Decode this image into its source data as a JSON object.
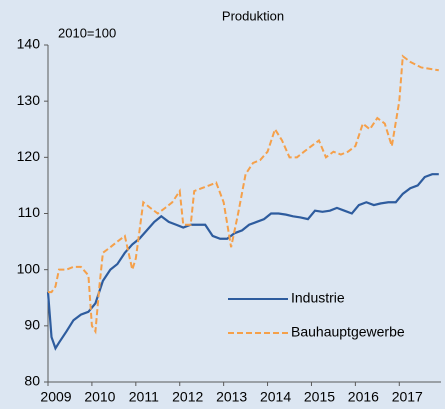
{
  "chart_data": {
    "type": "line",
    "title": "Produktion",
    "annotation": "2010=100",
    "xlim": [
      2009,
      2017.95
    ],
    "xticks": [
      2009,
      2010,
      2011,
      2012,
      2013,
      2014,
      2015,
      2016,
      2017
    ],
    "ylim": [
      80,
      140
    ],
    "yticks": [
      80,
      90,
      100,
      110,
      120,
      130,
      140
    ],
    "grid": false,
    "series": [
      {
        "name": "Industrie",
        "color": "#2e5c9e",
        "dash": false,
        "x": [
          2009.0,
          2009.08,
          2009.17,
          2009.25,
          2009.42,
          2009.58,
          2009.75,
          2009.92,
          2010.08,
          2010.25,
          2010.42,
          2010.58,
          2010.75,
          2010.92,
          2011.08,
          2011.25,
          2011.42,
          2011.58,
          2011.75,
          2011.92,
          2012.08,
          2012.25,
          2012.42,
          2012.58,
          2012.75,
          2012.92,
          2013.08,
          2013.25,
          2013.42,
          2013.58,
          2013.75,
          2013.92,
          2014.08,
          2014.25,
          2014.42,
          2014.58,
          2014.75,
          2014.92,
          2015.08,
          2015.25,
          2015.42,
          2015.58,
          2015.75,
          2015.92,
          2016.08,
          2016.25,
          2016.42,
          2016.58,
          2016.75,
          2016.92,
          2017.08,
          2017.25,
          2017.42,
          2017.58,
          2017.75,
          2017.9
        ],
        "values": [
          96,
          88,
          86,
          87,
          89,
          91,
          92,
          92.5,
          94,
          98,
          100,
          101,
          103,
          104.5,
          105.5,
          107,
          108.5,
          109.5,
          108.5,
          108,
          107.5,
          108,
          108,
          108,
          106,
          105.5,
          105.5,
          106.5,
          107,
          108,
          108.5,
          109,
          110,
          110,
          109.8,
          109.5,
          109.3,
          109,
          110.5,
          110.3,
          110.5,
          111,
          110.5,
          110,
          111.5,
          112,
          111.5,
          111.8,
          112,
          112,
          113.5,
          114.5,
          115,
          116.5,
          117,
          117
        ]
      },
      {
        "name": "Bauhauptgewerbe",
        "color": "#f5a04a",
        "dash": true,
        "x": [
          2009.0,
          2009.08,
          2009.17,
          2009.25,
          2009.42,
          2009.58,
          2009.75,
          2009.92,
          2010.0,
          2010.08,
          2010.17,
          2010.25,
          2010.42,
          2010.58,
          2010.75,
          2010.92,
          2011.0,
          2011.17,
          2011.33,
          2011.5,
          2011.67,
          2011.83,
          2012.0,
          2012.08,
          2012.25,
          2012.33,
          2012.5,
          2012.67,
          2012.83,
          2013.0,
          2013.17,
          2013.33,
          2013.5,
          2013.67,
          2013.83,
          2014.0,
          2014.17,
          2014.33,
          2014.5,
          2014.67,
          2014.83,
          2015.0,
          2015.17,
          2015.33,
          2015.5,
          2015.67,
          2015.83,
          2016.0,
          2016.17,
          2016.33,
          2016.5,
          2016.67,
          2016.83,
          2017.0,
          2017.08,
          2017.25,
          2017.5,
          2017.9
        ],
        "values": [
          96,
          96,
          97,
          100,
          100,
          100.5,
          100.5,
          99,
          90,
          89,
          97,
          103,
          104,
          105,
          106,
          100,
          102,
          112,
          111,
          110,
          111,
          112,
          114,
          108,
          108,
          114,
          114.5,
          115,
          115.5,
          112,
          104,
          110,
          117,
          119,
          119.5,
          121,
          125,
          123,
          120,
          120,
          121,
          122,
          123,
          120,
          121,
          120.5,
          121,
          122,
          126,
          125,
          127,
          126,
          122,
          130,
          138,
          137,
          136,
          135.5
        ]
      }
    ]
  }
}
